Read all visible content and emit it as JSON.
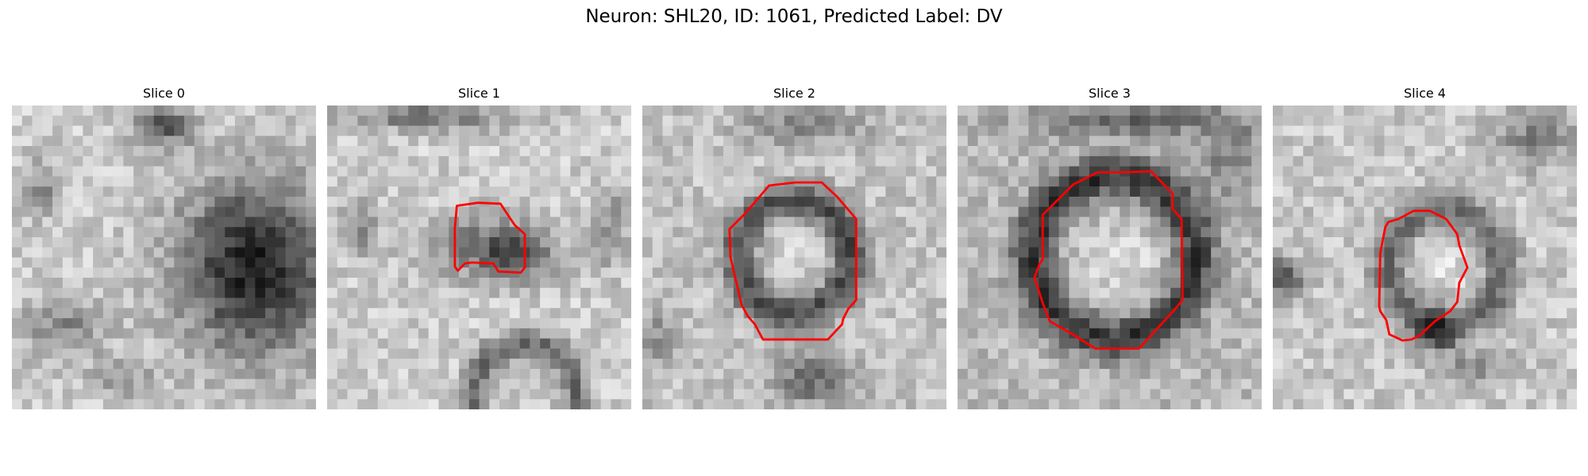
{
  "figure": {
    "title": "Neuron: SHL20, ID: 1061, Predicted Label: DV"
  },
  "colors": {
    "contour": "#ff0000"
  },
  "panels": [
    {
      "title": "Slice 0",
      "has_contour": false
    },
    {
      "title": "Slice 1",
      "has_contour": true
    },
    {
      "title": "Slice 2",
      "has_contour": true
    },
    {
      "title": "Slice 3",
      "has_contour": true
    },
    {
      "title": "Slice 4",
      "has_contour": true
    }
  ]
}
